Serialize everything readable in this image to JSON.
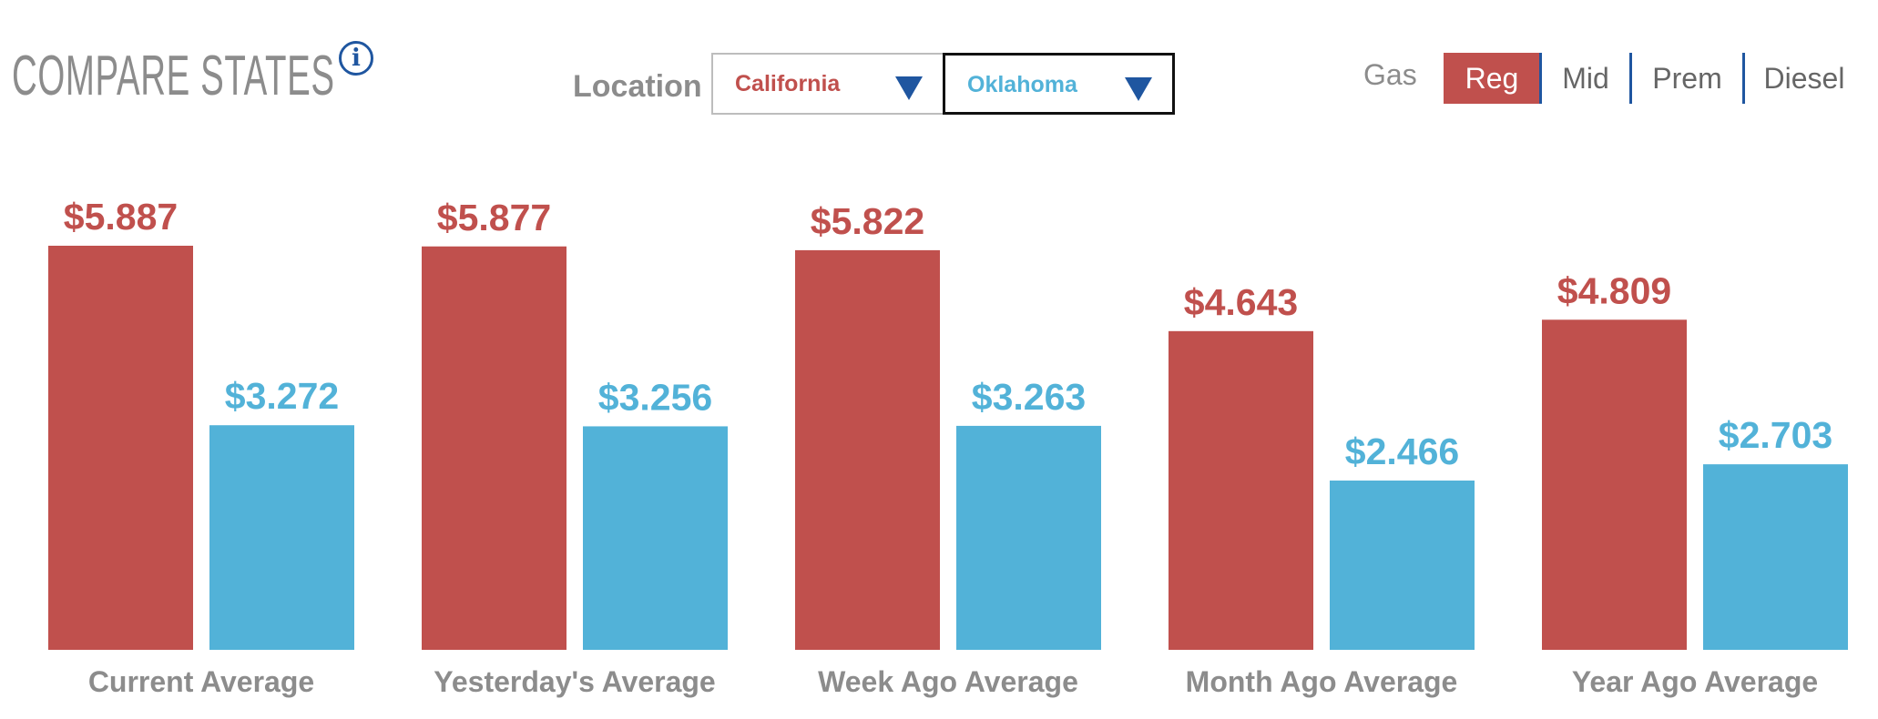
{
  "header": {
    "title": "COMPARE STATES",
    "info_icon": "i",
    "location_label": "Location"
  },
  "locations": {
    "first": "California",
    "second": "Oklahoma"
  },
  "gas_selector": {
    "label": "Gas",
    "options": [
      "Reg",
      "Mid",
      "Prem",
      "Diesel"
    ],
    "selected": "Reg"
  },
  "colors": {
    "california": "#c0504d",
    "oklahoma": "#52b2d8",
    "accent": "#1f56a0"
  },
  "chart_data": {
    "type": "bar",
    "categories": [
      "Current Average",
      "Yesterday's Average",
      "Week Ago Average",
      "Month Ago Average",
      "Year Ago Average"
    ],
    "series": [
      {
        "name": "California",
        "values": [
          5.887,
          5.877,
          5.822,
          4.643,
          4.809
        ],
        "labels": [
          "$5.887",
          "$5.877",
          "$5.822",
          "$4.643",
          "$4.809"
        ]
      },
      {
        "name": "Oklahoma",
        "values": [
          3.272,
          3.256,
          3.263,
          2.466,
          2.703
        ],
        "labels": [
          "$3.272",
          "$3.256",
          "$3.263",
          "$2.466",
          "$2.703"
        ]
      }
    ],
    "ylim": [
      0,
      6
    ]
  }
}
